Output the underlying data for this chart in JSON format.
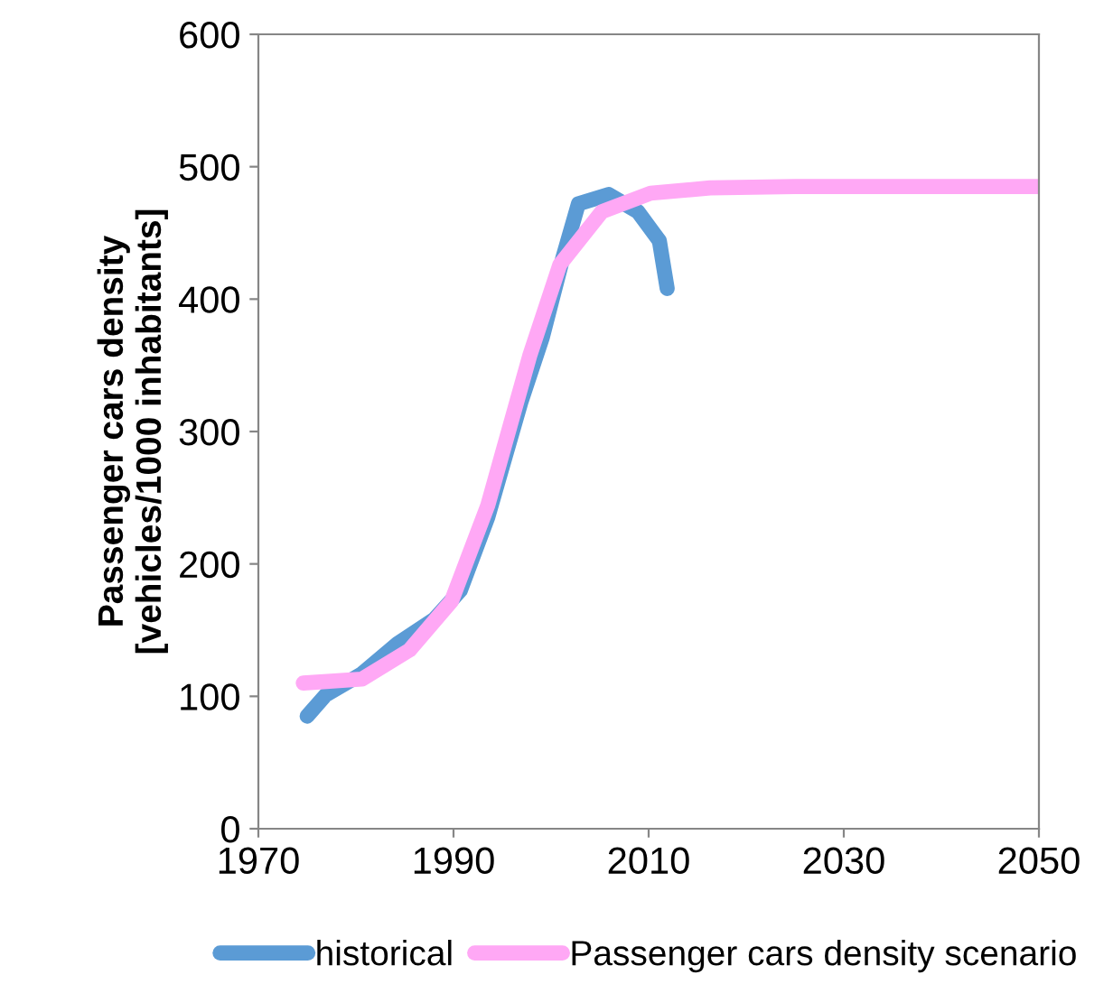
{
  "chart_data": {
    "type": "line",
    "ylabel": "Passenger cars density\n[vehicles/1000 inhabitants]",
    "xlim": [
      1970,
      2050
    ],
    "xticks": [
      1970,
      1990,
      2010,
      2030,
      2050
    ],
    "ylim": [
      0,
      600
    ],
    "yticks": [
      0,
      100,
      200,
      300,
      400,
      500,
      600
    ],
    "grid": false,
    "legend": "bottom",
    "marker": "none",
    "line_style": "solid",
    "series": [
      {
        "name": "historical",
        "color": "#5b9bd5",
        "x": [
          1975,
          1976.9,
          1980.6,
          1984.3,
          1988,
          1990.7,
          1993.5,
          1996.9,
          1999.1,
          2001.2,
          2002.8,
          2005.9,
          2008.9,
          2011.1,
          2011.9
        ],
        "values": [
          85,
          101,
          117,
          140,
          158,
          180,
          235,
          322,
          371,
          431,
          472,
          479,
          466,
          444,
          408
        ]
      },
      {
        "name": "Passenger cars density scenario",
        "color": "#ffa8f5",
        "x": [
          1974.6,
          1980.6,
          1985.5,
          1989.8,
          1993.5,
          1997.8,
          2000.9,
          2005.2,
          2010.2,
          2016.3,
          2025,
          2050
        ],
        "values": [
          110,
          113,
          135,
          172,
          244,
          357,
          426,
          466,
          480,
          484,
          485,
          485
        ]
      }
    ]
  }
}
